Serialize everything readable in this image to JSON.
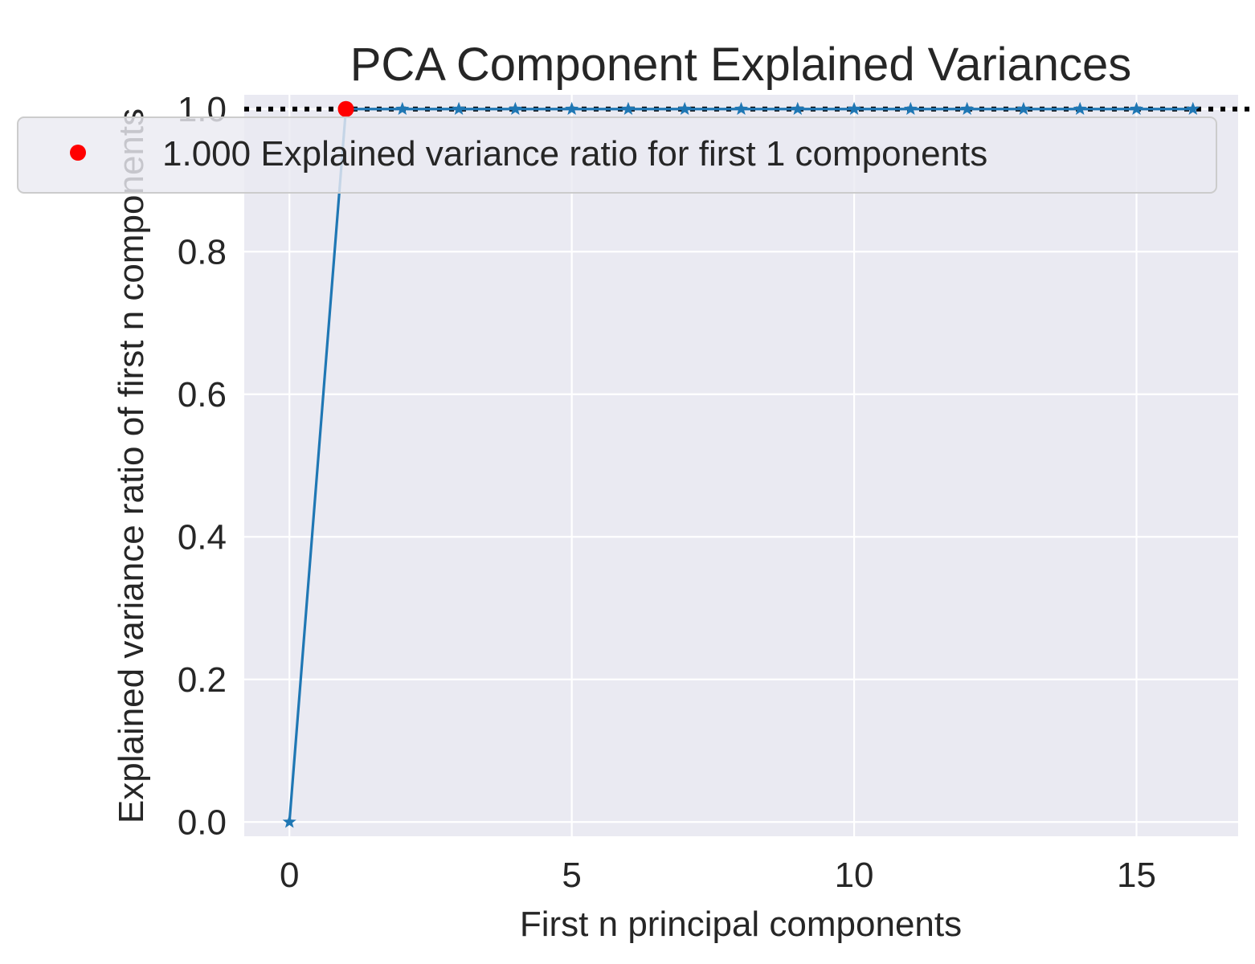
{
  "chart_data": {
    "type": "line",
    "title": "PCA Component Explained Variances",
    "xlabel": "First n principal components",
    "ylabel": "Explained variance ratio of first n components",
    "xlim": [
      -0.8,
      16.8
    ],
    "ylim": [
      -0.02,
      1.02
    ],
    "x_ticks": [
      0,
      5,
      10,
      15
    ],
    "x_tick_labels": [
      "0",
      "5",
      "10",
      "15"
    ],
    "y_ticks": [
      0.0,
      0.2,
      0.4,
      0.6,
      0.8,
      1.0
    ],
    "y_tick_labels": [
      "0.0",
      "0.2",
      "0.4",
      "0.6",
      "0.8",
      "1.0"
    ],
    "grid": true,
    "series": [
      {
        "marker": "star",
        "color": "#1f77b4",
        "x": [
          0,
          1,
          2,
          3,
          4,
          5,
          6,
          7,
          8,
          9,
          10,
          11,
          12,
          13,
          14,
          15,
          16
        ],
        "y": [
          0.0,
          1.0,
          1.0,
          1.0,
          1.0,
          1.0,
          1.0,
          1.0,
          1.0,
          1.0,
          1.0,
          1.0,
          1.0,
          1.0,
          1.0,
          1.0,
          1.0
        ]
      },
      {
        "name": "1.000 Explained variance ratio for first 1 components",
        "marker": "circle",
        "color": "#ff0000",
        "x": [
          1
        ],
        "y": [
          1.0
        ]
      }
    ],
    "reference_line": {
      "y": 1.0,
      "style": "dotted",
      "color": "#000000"
    },
    "legend": {
      "placement": "top",
      "entries": [
        "1.000 Explained variance ratio for first 1 components"
      ]
    },
    "colors": {
      "plot_background": "#eaeaf2",
      "grid": "#ffffff",
      "line": "#1f77b4",
      "highlight": "#ff0000",
      "text": "#262626"
    }
  }
}
